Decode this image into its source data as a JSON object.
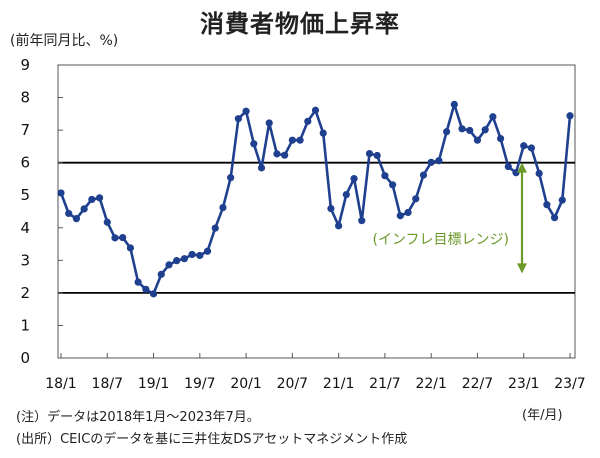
{
  "title": "消費者物価上昇率",
  "y_unit": "(前年同月比、%)",
  "x_unit": "(年/月)",
  "notes": [
    "(注）データは2018年1月～2023年7月。",
    "(出所）CEICのデータを基に三井住友DSアセットマネジメント作成"
  ],
  "chart_data": {
    "type": "line",
    "title": "消費者物価上昇率",
    "ylabel": "(前年同月比、%)",
    "xlabel": "(年/月)",
    "ylim": [
      0,
      9
    ],
    "yticks": [
      0,
      1,
      2,
      3,
      4,
      5,
      6,
      7,
      8,
      9
    ],
    "xtick_labels": [
      "18/1",
      "18/7",
      "19/1",
      "19/7",
      "20/1",
      "20/7",
      "21/1",
      "21/7",
      "22/1",
      "22/7",
      "23/1",
      "23/7"
    ],
    "series": [
      {
        "name": "",
        "color": "#1f3f8f",
        "x": [
          "18/1",
          "18/2",
          "18/3",
          "18/4",
          "18/5",
          "18/6",
          "18/7",
          "18/8",
          "18/9",
          "18/10",
          "18/11",
          "18/12",
          "19/1",
          "19/2",
          "19/3",
          "19/4",
          "19/5",
          "19/6",
          "19/7",
          "19/8",
          "19/9",
          "19/10",
          "19/11",
          "19/12",
          "20/1",
          "20/2",
          "20/3",
          "20/4",
          "20/5",
          "20/6",
          "20/7",
          "20/8",
          "20/9",
          "20/10",
          "20/11",
          "20/12",
          "21/1",
          "21/2",
          "21/3",
          "21/4",
          "21/5",
          "21/6",
          "21/7",
          "21/8",
          "21/9",
          "21/10",
          "21/11",
          "21/12",
          "22/1",
          "22/2",
          "22/3",
          "22/4",
          "22/5",
          "22/6",
          "22/7",
          "22/8",
          "22/9",
          "22/10",
          "22/11",
          "22/12",
          "23/1",
          "23/2",
          "23/3",
          "23/4",
          "23/5",
          "23/6",
          "23/7"
        ],
        "values": [
          5.07,
          4.44,
          4.28,
          4.58,
          4.87,
          4.92,
          4.17,
          3.69,
          3.7,
          3.38,
          2.33,
          2.11,
          1.97,
          2.57,
          2.86,
          2.99,
          3.05,
          3.18,
          3.15,
          3.28,
          3.99,
          4.62,
          5.54,
          7.35,
          7.58,
          6.58,
          5.84,
          7.22,
          6.27,
          6.23,
          6.69,
          6.69,
          7.27,
          7.61,
          6.91,
          4.59,
          4.06,
          5.02,
          5.51,
          4.22,
          6.28,
          6.22,
          5.6,
          5.32,
          4.37,
          4.47,
          4.89,
          5.62,
          6.01,
          6.06,
          6.95,
          7.79,
          7.04,
          6.99,
          6.69,
          7.01,
          7.41,
          6.74,
          5.88,
          5.69,
          6.52,
          6.45,
          5.67,
          4.71,
          4.31,
          4.85,
          7.44
        ]
      }
    ],
    "reference_lines": [
      {
        "y": 6,
        "color": "#000000"
      },
      {
        "y": 2,
        "color": "#000000"
      }
    ],
    "annotation": {
      "text": "(インフレ目標レンジ)",
      "color": "#6b9a2a",
      "arrow_from": 6,
      "arrow_to": 2.6
    },
    "grid": false
  }
}
